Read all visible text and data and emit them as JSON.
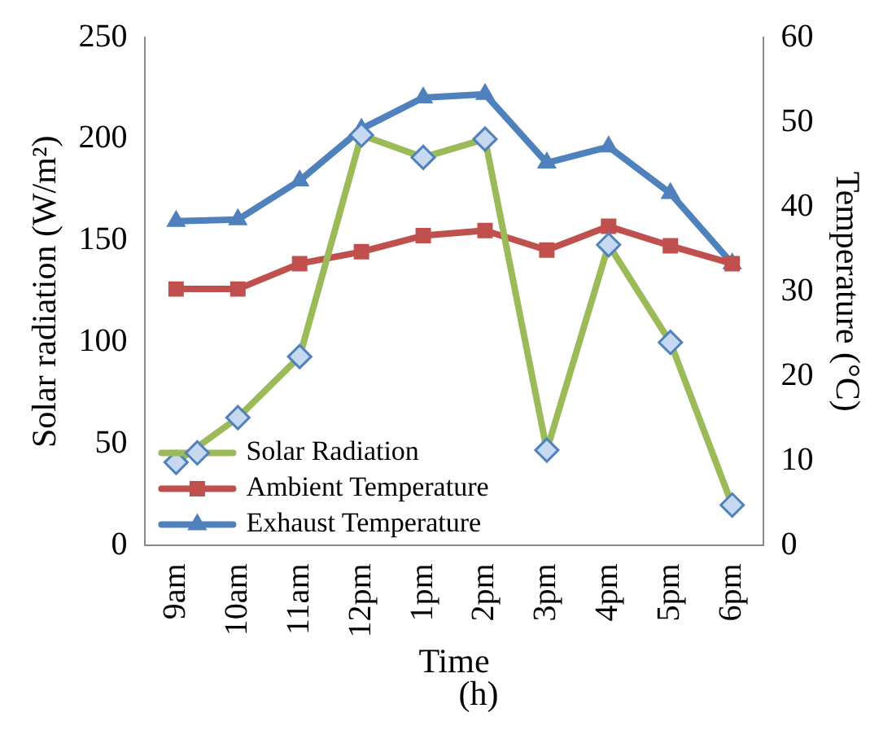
{
  "chart_data": {
    "type": "line",
    "xlabel": "Time",
    "ylabel": "Solar radiation (W/m²)",
    "y2label": "Temperature (°C)",
    "annotations": [
      "(h)"
    ],
    "categories": [
      "9am",
      "10am",
      "11am",
      "12pm",
      "1pm",
      "2pm",
      "3pm",
      "4pm",
      "5pm",
      "6pm"
    ],
    "series": [
      {
        "name": "Solar Radiation",
        "color": "#9bbb59",
        "marker": "diamond",
        "values": [
          41,
          63,
          93,
          202,
          191,
          200,
          47,
          148,
          100,
          20
        ]
      },
      {
        "name": "Ambient Temperature",
        "color": "#c0504d",
        "marker": "square",
        "axis": "y2",
        "values": [
          30.3,
          30.3,
          33.3,
          34.7,
          36.6,
          37.2,
          34.9,
          37.7,
          35.4,
          33.3
        ]
      },
      {
        "name": "Exhaust Temperature",
        "color": "#4f81bd",
        "marker": "triangle",
        "axis": "y2",
        "values": [
          38.3,
          38.5,
          43.1,
          49.2,
          52.9,
          53.3,
          45.2,
          47.1,
          41.6,
          33.3
        ]
      }
    ],
    "ylim": [
      0,
      250
    ],
    "yticks": [
      0,
      50,
      100,
      150,
      200,
      250
    ],
    "y2lim": [
      0,
      60
    ],
    "y2ticks": [
      0,
      10,
      20,
      30,
      40,
      50,
      60
    ],
    "grid": false,
    "legend": "bottom left"
  }
}
